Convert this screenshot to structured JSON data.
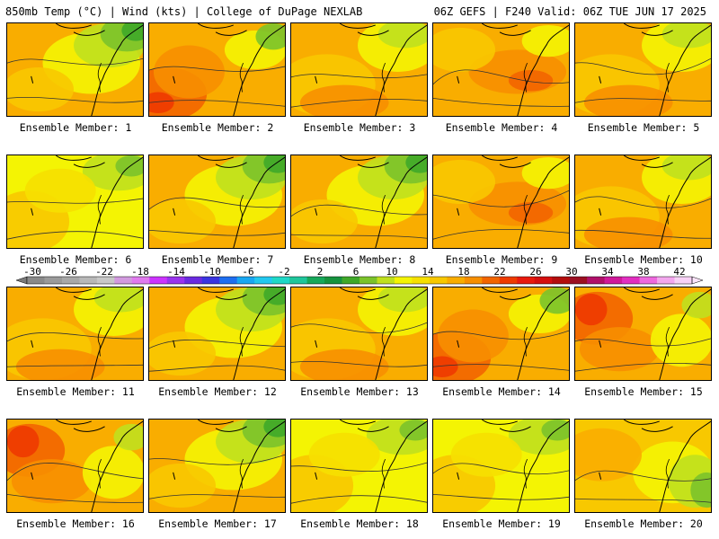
{
  "header": {
    "title": "850mb Temp (°C) | Wind (kts) | College of DuPage NEXLAB",
    "run_info": "06Z GEFS | F240 Valid: 06Z TUE JUN 17 2025"
  },
  "members": [
    {
      "label": "Ensemble Member: 1",
      "scheme": "green-ne"
    },
    {
      "label": "Ensemble Member: 2",
      "scheme": "hot-sw"
    },
    {
      "label": "Ensemble Member: 3",
      "scheme": "warm"
    },
    {
      "label": "Ensemble Member: 4",
      "scheme": "warm-mid"
    },
    {
      "label": "Ensemble Member: 5",
      "scheme": "warm"
    },
    {
      "label": "Ensemble Member: 6",
      "scheme": "yellow"
    },
    {
      "label": "Ensemble Member: 7",
      "scheme": "green-ne"
    },
    {
      "label": "Ensemble Member: 8",
      "scheme": "green-ne"
    },
    {
      "label": "Ensemble Member: 9",
      "scheme": "warm-mid"
    },
    {
      "label": "Ensemble Member: 10",
      "scheme": "warm"
    },
    {
      "label": "Ensemble Member: 11",
      "scheme": "warm"
    },
    {
      "label": "Ensemble Member: 12",
      "scheme": "green-ne"
    },
    {
      "label": "Ensemble Member: 13",
      "scheme": "warm"
    },
    {
      "label": "Ensemble Member: 14",
      "scheme": "hot-sw"
    },
    {
      "label": "Ensemble Member: 15",
      "scheme": "hot-nw"
    },
    {
      "label": "Ensemble Member: 16",
      "scheme": "hot-nw"
    },
    {
      "label": "Ensemble Member: 17",
      "scheme": "green-ne"
    },
    {
      "label": "Ensemble Member: 18",
      "scheme": "yellow"
    },
    {
      "label": "Ensemble Member: 19",
      "scheme": "yellow"
    },
    {
      "label": "Ensemble Member: 20",
      "scheme": "green-e"
    }
  ],
  "colorbar": {
    "tick_labels": [
      "-30",
      "-26",
      "-22",
      "-18",
      "-14",
      "-10",
      "-6",
      "-2",
      "2",
      "6",
      "10",
      "14",
      "18",
      "22",
      "26",
      "30",
      "34",
      "38",
      "42"
    ],
    "colors": [
      "#8a8a8a",
      "#9a9a9a",
      "#a8a8a8",
      "#b8b8b8",
      "#c8c8c8",
      "#d29adf",
      "#e07aee",
      "#cc33ff",
      "#9933ee",
      "#6a2ae0",
      "#3a34e0",
      "#1e6ef0",
      "#19a7f2",
      "#22c8ef",
      "#1fd8c7",
      "#1fc69b",
      "#17a85a",
      "#16933e",
      "#3fa829",
      "#7bc32b",
      "#c0e01e",
      "#f4f403",
      "#f6e000",
      "#f8c800",
      "#f9ad00",
      "#f78f00",
      "#f26500",
      "#ee3a00",
      "#e81a0d",
      "#d50f0f",
      "#b30d0d",
      "#9c0f22",
      "#b0106a",
      "#d0199a",
      "#e22ec0",
      "#ee68de",
      "#f3a7ee",
      "#f8d2f6"
    ]
  }
}
